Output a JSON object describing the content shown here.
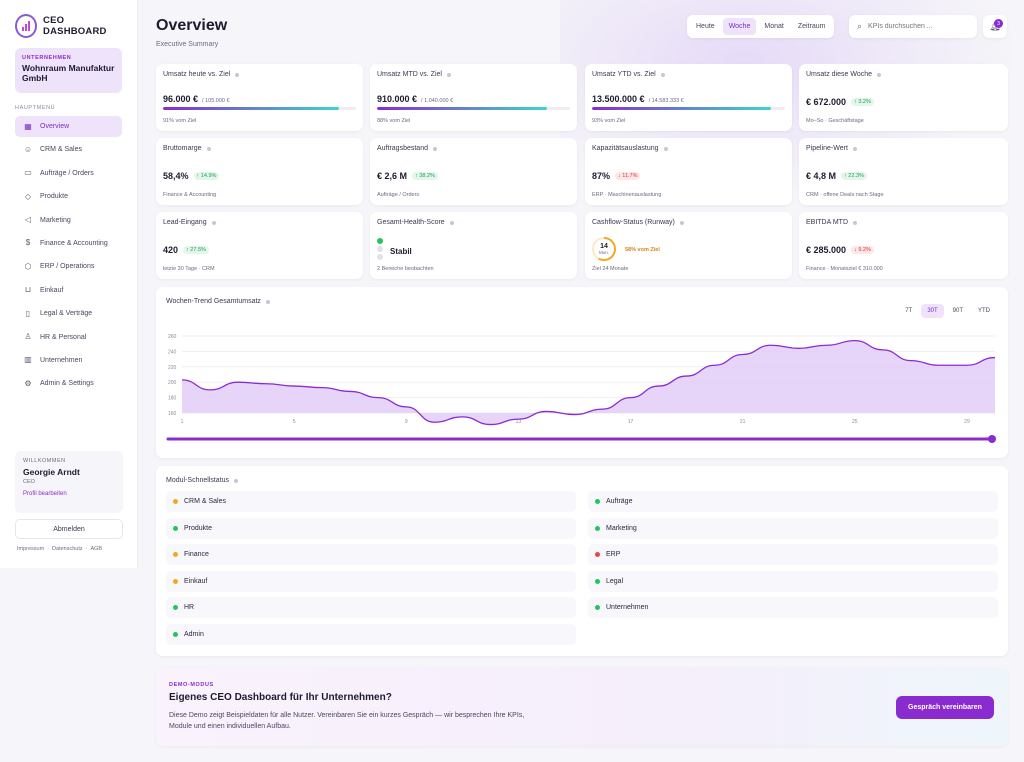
{
  "brand": {
    "name": "CEO DASHBOARD"
  },
  "company": {
    "label": "UNTERNEHMEN",
    "name": "Wohnraum Manufaktur GmbH"
  },
  "menu": {
    "title": "HAUPTMENÜ",
    "items": [
      {
        "label": "Overview",
        "icon": "grid-icon",
        "active": true
      },
      {
        "label": "CRM & Sales",
        "icon": "users-icon"
      },
      {
        "label": "Aufträge / Orders",
        "icon": "clipboard-icon"
      },
      {
        "label": "Produkte",
        "icon": "box-icon"
      },
      {
        "label": "Marketing",
        "icon": "megaphone-icon"
      },
      {
        "label": "Finance & Accounting",
        "icon": "dollar-icon"
      },
      {
        "label": "ERP / Operations",
        "icon": "cube-icon"
      },
      {
        "label": "Einkauf",
        "icon": "cart-icon"
      },
      {
        "label": "Legal & Verträge",
        "icon": "document-icon"
      },
      {
        "label": "HR & Personal",
        "icon": "user-plus-icon"
      },
      {
        "label": "Unternehmen",
        "icon": "building-icon"
      },
      {
        "label": "Admin & Settings",
        "icon": "gear-icon"
      }
    ]
  },
  "welcome": {
    "label": "WILLKOMMEN",
    "name": "Georgie Arndt",
    "role": "CEO",
    "edit": "Profil bearbeiten"
  },
  "logout": "Abmelden",
  "footer": {
    "impressum": "Impressum",
    "datenschutz": "Datenschutz",
    "agb": "AGB",
    "sep": "·"
  },
  "header": {
    "title": "Overview",
    "subtitle": "Executive Summary",
    "periods": [
      "Heute",
      "Woche",
      "Monat",
      "Zeitraum"
    ],
    "active_period": "Woche",
    "search_placeholder": "KPIs durchsuchen ...",
    "notifications": "3"
  },
  "kpis": {
    "umsatz_heute": {
      "title": "Umsatz heute vs. Ziel",
      "value": "96.000 €",
      "of": "/ 105.000 €",
      "sub": "91% vom Ziel",
      "progress": 0.91
    },
    "umsatz_mtd": {
      "title": "Umsatz MTD vs. Ziel",
      "value": "910.000 €",
      "of": "/ 1.040.000 €",
      "sub": "88% vom Ziel",
      "progress": 0.88
    },
    "umsatz_ytd": {
      "title": "Umsatz YTD vs. Ziel",
      "value": "13.500.000 €",
      "of": "/ 14.583.333 €",
      "sub": "93% vom Ziel",
      "progress": 0.93
    },
    "umsatz_woche": {
      "title": "Umsatz diese Woche",
      "value": "€ 672.000",
      "chip": "↑ 3.2%",
      "sub": "Mo–So · Geschäftstage"
    },
    "bruttomarge": {
      "title": "Bruttomarge",
      "value": "58,4%",
      "chip": "↑ 14.9%",
      "sub": "Finance & Accounting"
    },
    "auftragsbestand": {
      "title": "Auftragsbestand",
      "value": "€ 2,6 M",
      "chip": "↑ 38.2%",
      "sub": "Aufträge / Orders"
    },
    "kapazitaet": {
      "title": "Kapazitätsauslastung",
      "value": "87%",
      "chip": "↓ 11.7%",
      "sub": "ERP · Maschinenauslastung"
    },
    "pipeline": {
      "title": "Pipeline-Wert",
      "value": "€ 4,8 M",
      "chip": "↑ 22.3%",
      "sub": "CRM · offene Deals nach Stage"
    },
    "lead": {
      "title": "Lead-Eingang",
      "value": "420",
      "chip": "↑ 27.5%",
      "sub": "letzte 30 Tage · CRM"
    },
    "health": {
      "title": "Gesamt-Health-Score",
      "value": "Stabil",
      "sub": "2 Bereiche beobachten"
    },
    "cashflow": {
      "title": "Cashflow-Status (Runway)",
      "ring_value": "14",
      "ring_unit": "Mon.",
      "ring_label": "58% vom Ziel",
      "sub": "Ziel 24 Monate",
      "progress": 0.58
    },
    "ebitda": {
      "title": "EBITDA MTD",
      "value": "€ 285.000",
      "chip": "↓ 9.2%",
      "sub": "Finance · Monatsziel € 310.000"
    }
  },
  "trend": {
    "title": "Wochen-Trend Gesamtumsatz",
    "ranges": [
      "7T",
      "30T",
      "90T",
      "YTD"
    ],
    "active_range": "30T"
  },
  "chart_data": {
    "type": "area",
    "title": "Wochen-Trend Gesamtumsatz",
    "x": [
      1,
      2,
      3,
      4,
      5,
      6,
      7,
      8,
      9,
      10,
      11,
      12,
      13,
      14,
      15,
      16,
      17,
      18,
      19,
      20,
      21,
      22,
      23,
      24,
      25,
      26,
      27,
      28,
      29,
      30
    ],
    "x_ticks": [
      1,
      5,
      9,
      13,
      17,
      21,
      25,
      29
    ],
    "values": [
      203,
      190,
      200,
      198,
      195,
      193,
      188,
      180,
      168,
      148,
      155,
      145,
      152,
      162,
      158,
      165,
      180,
      195,
      208,
      222,
      236,
      248,
      244,
      248,
      254,
      242,
      228,
      222,
      222,
      232
    ],
    "ylim": [
      160,
      260
    ],
    "y_ticks": [
      160,
      180,
      200,
      220,
      240,
      260
    ],
    "xlabel": "",
    "ylabel": "",
    "color": "#8a2bd0",
    "fill": "#e3cdf8"
  },
  "modules": {
    "title": "Modul-Schnellstatus",
    "items": [
      {
        "label": "CRM & Sales",
        "color": "#f5a623"
      },
      {
        "label": "Aufträge",
        "color": "#22c55e"
      },
      {
        "label": "Produkte",
        "color": "#22c55e"
      },
      {
        "label": "Marketing",
        "color": "#22c55e"
      },
      {
        "label": "Finance",
        "color": "#f5a623"
      },
      {
        "label": "ERP",
        "color": "#ef4444"
      },
      {
        "label": "Einkauf",
        "color": "#f5a623"
      },
      {
        "label": "Legal",
        "color": "#22c55e"
      },
      {
        "label": "HR",
        "color": "#22c55e"
      },
      {
        "label": "Unternehmen",
        "color": "#22c55e"
      },
      {
        "label": "Admin",
        "color": "#22c55e"
      }
    ]
  },
  "demo": {
    "label": "DEMO-MODUS",
    "heading": "Eigenes CEO Dashboard für Ihr Unternehmen?",
    "text": "Diese Demo zeigt Beispieldaten für alle Nutzer. Vereinbaren Sie ein kurzes Gespräch — wir besprechen Ihre KPIs, Module und einen individuellen Aufbau.",
    "cta": "Gespräch vereinbaren"
  }
}
